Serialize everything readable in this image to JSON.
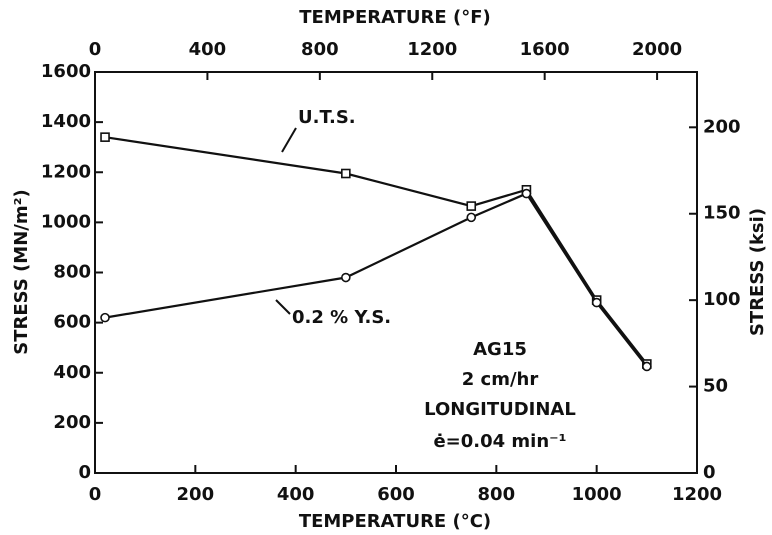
{
  "chart_data": {
    "type": "line",
    "xlabel": "TEMPERATURE (°C)",
    "x2label": "TEMPERATURE (°F)",
    "ylabel": "STRESS (MN/m²)",
    "y2label": "STRESS (ksi)",
    "xlim": [
      0,
      1200
    ],
    "xticks": [
      0,
      200,
      400,
      600,
      800,
      1000,
      1200
    ],
    "x2lim": [
      0,
      2142
    ],
    "x2ticks": [
      0,
      400,
      800,
      1200,
      1600,
      2000
    ],
    "ylim": [
      0,
      1600
    ],
    "yticks": [
      0,
      200,
      400,
      600,
      800,
      1000,
      1200,
      1400,
      1600
    ],
    "y2lim": [
      0,
      232
    ],
    "y2ticks": [
      0,
      50,
      100,
      150,
      200
    ],
    "grid": false,
    "series": [
      {
        "name": "U.T.S.",
        "color": "#111111",
        "marker": "square",
        "x": [
          20,
          500,
          750,
          860,
          1000,
          1100
        ],
        "values": [
          1340,
          1195,
          1065,
          1130,
          690,
          435
        ]
      },
      {
        "name": "0.2 % Y.S.",
        "color": "#111111",
        "marker": "circle",
        "x": [
          20,
          500,
          750,
          860,
          1000,
          1100
        ],
        "values": [
          620,
          780,
          1020,
          1115,
          680,
          425
        ]
      }
    ],
    "annotations": [
      "AG15",
      "2 cm/hr",
      "LONGITUDINAL",
      "ė=0.04 min⁻¹"
    ]
  }
}
